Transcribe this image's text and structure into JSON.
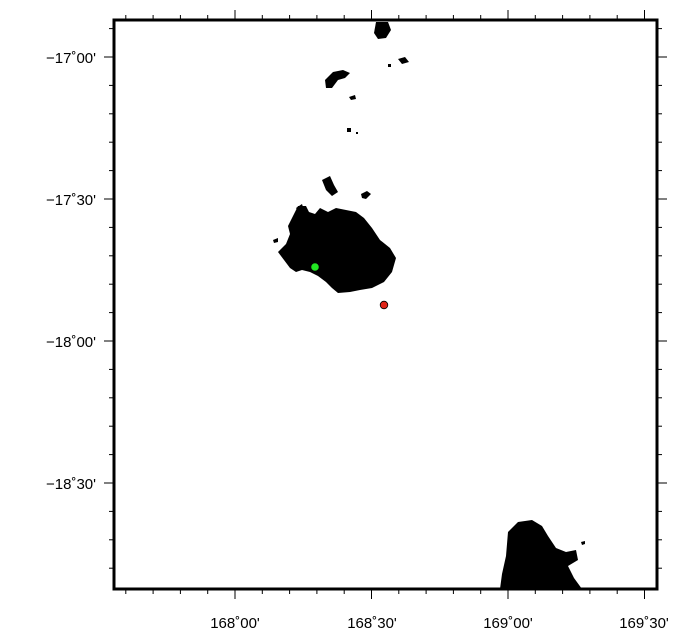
{
  "map": {
    "lon_labels": [
      "168˚00'",
      "168˚30'",
      "169˚00'",
      "169˚30'"
    ],
    "lat_labels": [
      "−17˚00'",
      "−17˚30'",
      "−18˚00'",
      "−18˚30'"
    ],
    "colors": {
      "land": "#000000",
      "water": "#ffffff",
      "frame": "#000000",
      "marker_green": "#22e622",
      "marker_red": "#e02418"
    },
    "markers": [
      {
        "name": "green-marker",
        "color": "#22e622"
      },
      {
        "name": "red-marker",
        "color": "#e02418"
      }
    ]
  }
}
